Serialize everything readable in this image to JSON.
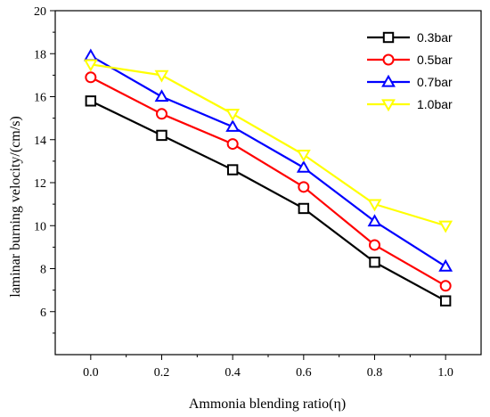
{
  "chart_data": {
    "type": "line",
    "title": "",
    "xlabel": "Ammonia blending ratio(η)",
    "ylabel": "laminar burning velocity/(cm/s)",
    "x": [
      0.0,
      0.2,
      0.4,
      0.6,
      0.8,
      1.0
    ],
    "xlim": [
      -0.1,
      1.1
    ],
    "ylim": [
      4,
      20
    ],
    "xticks": [
      "0.0",
      "0.2",
      "0.4",
      "0.6",
      "0.8",
      "1.0"
    ],
    "yticks": [
      "6",
      "8",
      "10",
      "12",
      "14",
      "16",
      "18",
      "20"
    ],
    "grid": false,
    "legend_position": "top-right",
    "series": [
      {
        "name": "0.3bar",
        "color": "#000000",
        "marker": "square",
        "values": [
          15.8,
          14.2,
          12.6,
          10.8,
          8.3,
          6.5
        ]
      },
      {
        "name": "0.5bar",
        "color": "#ff0000",
        "marker": "circle",
        "values": [
          16.9,
          15.2,
          13.8,
          11.8,
          9.1,
          7.2
        ]
      },
      {
        "name": "0.7bar",
        "color": "#0000ff",
        "marker": "triangle-up",
        "values": [
          17.9,
          16.0,
          14.6,
          12.7,
          10.2,
          8.1
        ]
      },
      {
        "name": "1.0bar",
        "color": "#ffff00",
        "marker": "triangle-down",
        "values": [
          17.5,
          17.0,
          15.2,
          13.3,
          11.0,
          10.0
        ]
      }
    ]
  }
}
